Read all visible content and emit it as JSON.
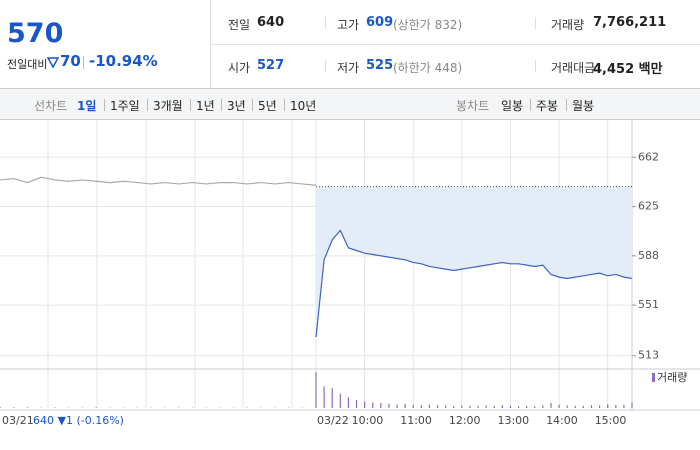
{
  "header": {
    "price": "570",
    "change_label": "전일대비",
    "change": "70",
    "change_pct": "-10.94%",
    "stats": [
      {
        "label": "전일",
        "value": "640"
      },
      {
        "label": "고가",
        "value": "609",
        "extra": "(상한가 832)"
      },
      {
        "label": "거래량",
        "value": "7,766,211"
      },
      {
        "label": "시가",
        "value": "527"
      },
      {
        "label": "저가",
        "value": "525",
        "extra": "(하한가 448)"
      },
      {
        "label": "거래대금",
        "value": "4,452 백만"
      }
    ]
  },
  "tabs": {
    "line_label": "선차트",
    "line": [
      "1일",
      "1주일",
      "3개월",
      "1년",
      "3년",
      "5년",
      "10년"
    ],
    "candle_label": "봉차트",
    "candle": [
      "일봉",
      "주봉",
      "월봉"
    ]
  },
  "chart_data": {
    "type": "line",
    "x_labels": [
      "03/21",
      "03/22",
      "10:00",
      "11:00",
      "12:00",
      "13:00",
      "14:00",
      "15:00"
    ],
    "prev_summary": "640 ▼1 (-0.16%)",
    "reference_line": 640,
    "ylim": [
      506,
      684
    ],
    "yticks": [
      662,
      625,
      588,
      551,
      513
    ],
    "volume_label": "거래량",
    "series": [
      {
        "name": "03/21",
        "color": "#aaaaaa",
        "values": [
          645,
          646,
          643,
          647,
          645,
          644,
          645,
          644,
          643,
          644,
          643,
          642,
          643,
          642,
          643,
          642,
          643,
          643,
          642,
          643,
          642,
          643,
          642,
          641
        ],
        "volume": [
          3,
          2,
          2,
          1,
          2,
          1,
          1,
          2,
          1,
          1,
          1,
          1,
          1,
          1,
          1,
          1,
          1,
          1,
          1,
          1,
          1,
          1,
          1,
          2
        ]
      },
      {
        "name": "03/22",
        "color": "#3b63c9",
        "values": [
          527,
          585,
          600,
          607,
          594,
          592,
          590,
          589,
          588,
          587,
          586,
          585,
          583,
          582,
          580,
          579,
          578,
          577,
          578,
          579,
          580,
          581,
          582,
          583,
          582,
          582,
          581,
          580,
          581,
          574,
          572,
          571,
          572,
          573,
          574,
          575,
          573,
          574,
          572,
          571
        ],
        "volume": [
          100,
          60,
          55,
          40,
          30,
          22,
          18,
          15,
          14,
          12,
          10,
          12,
          9,
          8,
          10,
          8,
          7,
          6,
          7,
          6,
          6,
          7,
          6,
          8,
          6,
          5,
          6,
          5,
          7,
          14,
          9,
          7,
          6,
          6,
          8,
          7,
          10,
          8,
          9,
          15
        ]
      }
    ]
  }
}
